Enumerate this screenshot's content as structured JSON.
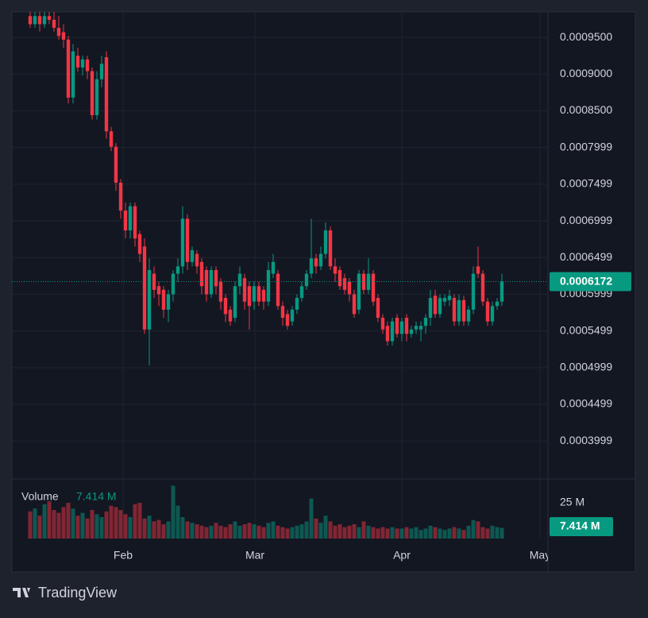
{
  "chart_data": {
    "type": "candlestick",
    "open": [
      0.000979,
      0.000968,
      0.000979,
      0.000968,
      0.000979,
      0.000974,
      0.000963,
      0.000957,
      0.000947,
      0.000868,
      0.000925,
      0.000909,
      0.00092,
      0.000904,
      0.000844,
      0.000893,
      0.000923,
      0.000822,
      0.000801,
      0.000752,
      0.000714,
      0.000687,
      0.00072,
      0.000682,
      0.000665,
      0.000552,
      0.000628,
      0.000611,
      0.000606,
      0.000579,
      0.0006,
      0.000628,
      0.000638,
      0.000703,
      0.000644,
      0.000655,
      0.000644,
      0.000633,
      0.0006,
      0.000633,
      0.000617,
      0.000595,
      0.000579,
      0.000568,
      0.000611,
      0.000622,
      0.000611,
      0.00059,
      0.000611,
      0.000606,
      0.00059,
      0.000628,
      0.000628,
      0.000584,
      0.000573,
      0.000563,
      0.000579,
      0.000595,
      0.000611,
      0.000628,
      0.000649,
      0.000638,
      0.000655,
      0.000687,
      0.000638,
      0.000633,
      0.000622,
      0.000617,
      0.0006,
      0.000579,
      0.000628,
      0.000606,
      0.000628,
      0.000595,
      0.000568,
      0.000557,
      0.000536,
      0.000568,
      0.000546,
      0.000568,
      0.000546,
      0.000552,
      0.000552,
      0.000557,
      0.000568,
      0.000598,
      0.000573,
      0.00059,
      0.000592,
      0.000595,
      0.000563,
      0.000592,
      0.000563,
      0.000579,
      0.000638,
      0.000628,
      0.00059,
      0.000563,
      0.000584,
      0.00059
    ],
    "high": [
      0.000985,
      0.000985,
      0.000985,
      0.000985,
      0.000985,
      0.000985,
      0.000979,
      0.000968,
      0.000952,
      0.000941,
      0.000936,
      0.000925,
      0.000925,
      0.000909,
      0.000904,
      0.000925,
      0.000931,
      0.000828,
      0.000806,
      0.000757,
      0.000725,
      0.000725,
      0.000725,
      0.000687,
      0.000676,
      0.000649,
      0.000638,
      0.000617,
      0.000611,
      0.000606,
      0.000633,
      0.000649,
      0.00072,
      0.000709,
      0.000665,
      0.00066,
      0.000649,
      0.000638,
      0.000638,
      0.000638,
      0.000622,
      0.0006,
      0.000584,
      0.000617,
      0.000638,
      0.000628,
      0.000617,
      0.000617,
      0.000617,
      0.000611,
      0.000644,
      0.000655,
      0.000633,
      0.00059,
      0.000579,
      0.000584,
      0.0006,
      0.000617,
      0.000633,
      0.000703,
      0.000655,
      0.000665,
      0.000698,
      0.000692,
      0.000649,
      0.000638,
      0.000628,
      0.000622,
      0.000606,
      0.000633,
      0.000633,
      0.000649,
      0.000633,
      0.0006,
      0.000573,
      0.000563,
      0.000568,
      0.000573,
      0.000568,
      0.000573,
      0.000557,
      0.000563,
      0.000563,
      0.000573,
      0.000606,
      0.000606,
      0.0006,
      0.0006,
      0.000606,
      0.0006,
      0.0006,
      0.000598,
      0.000584,
      0.000638,
      0.000665,
      0.000633,
      0.000595,
      0.00059,
      0.000595,
      0.000628
    ],
    "low": [
      0.000963,
      0.000963,
      0.000958,
      0.000963,
      0.000968,
      0.000958,
      0.000947,
      0.000936,
      0.00086,
      0.00086,
      0.000903,
      0.000898,
      0.000893,
      0.000838,
      0.000838,
      0.000882,
      0.000812,
      0.000795,
      0.000741,
      0.000703,
      0.000676,
      0.000676,
      0.000665,
      0.000644,
      0.000546,
      0.000503,
      0.000595,
      0.000584,
      0.000568,
      0.000562,
      0.00059,
      0.000617,
      0.000628,
      0.000633,
      0.000638,
      0.000628,
      0.0006,
      0.00059,
      0.000595,
      0.0006,
      0.000579,
      0.000562,
      0.000557,
      0.000562,
      0.0006,
      0.000579,
      0.000552,
      0.000579,
      0.000584,
      0.000579,
      0.000584,
      0.000622,
      0.000579,
      0.000557,
      0.000552,
      0.000557,
      0.000573,
      0.00059,
      0.000606,
      0.000622,
      0.000628,
      0.000633,
      0.000649,
      0.000633,
      0.000617,
      0.000606,
      0.0006,
      0.00059,
      0.000568,
      0.000573,
      0.0006,
      0.0006,
      0.000584,
      0.000562,
      0.000546,
      0.00053,
      0.00053,
      0.000541,
      0.000536,
      0.000536,
      0.000541,
      0.000546,
      0.000536,
      0.000546,
      0.000557,
      0.000568,
      0.000568,
      0.000584,
      0.000584,
      0.000557,
      0.000557,
      0.000557,
      0.000557,
      0.000573,
      0.000622,
      0.000584,
      0.000557,
      0.000557,
      0.000579,
      0.000584
    ],
    "close": [
      0.000968,
      0.000979,
      0.000968,
      0.000979,
      0.000974,
      0.000963,
      0.000952,
      0.000947,
      0.000868,
      0.000931,
      0.000909,
      0.00092,
      0.000904,
      0.000844,
      0.000893,
      0.000914,
      0.000822,
      0.000801,
      0.000752,
      0.000714,
      0.000687,
      0.00072,
      0.000676,
      0.000655,
      0.000552,
      0.000633,
      0.000606,
      0.0006,
      0.000579,
      0.0006,
      0.000628,
      0.000638,
      0.000703,
      0.000644,
      0.00066,
      0.000638,
      0.000611,
      0.0006,
      0.000633,
      0.000611,
      0.00059,
      0.000573,
      0.000563,
      0.000611,
      0.000628,
      0.00059,
      0.000584,
      0.000611,
      0.00059,
      0.00059,
      0.000633,
      0.000644,
      0.000584,
      0.000568,
      0.000557,
      0.000579,
      0.000595,
      0.000611,
      0.000628,
      0.000649,
      0.000638,
      0.000655,
      0.000687,
      0.000638,
      0.000628,
      0.000611,
      0.000606,
      0.0006,
      0.000573,
      0.000628,
      0.000606,
      0.000628,
      0.00059,
      0.000568,
      0.000552,
      0.000536,
      0.000563,
      0.000546,
      0.000563,
      0.000546,
      0.000552,
      0.000557,
      0.000557,
      0.000568,
      0.000595,
      0.000573,
      0.000595,
      0.000595,
      0.000598,
      0.000563,
      0.000592,
      0.000563,
      0.000579,
      0.000628,
      0.000628,
      0.00059,
      0.000563,
      0.000584,
      0.00059,
      0.0006172
    ],
    "volume": {
      "name": "Volume",
      "current_label": "7.414 M",
      "values": [
        19,
        21,
        16,
        24,
        26,
        20,
        18,
        22,
        25,
        21,
        16,
        18,
        14,
        20,
        17,
        15,
        19,
        23,
        22,
        20,
        17,
        15,
        24,
        25,
        14,
        16,
        12,
        13,
        10,
        12,
        37,
        23,
        15,
        12,
        11,
        10,
        9,
        8,
        9,
        11,
        9,
        8,
        10,
        12,
        9,
        10,
        11,
        10,
        9,
        8,
        11,
        12,
        9,
        8,
        7,
        8,
        9,
        10,
        12,
        28,
        14,
        11,
        16,
        12,
        9,
        10,
        8,
        9,
        10,
        8,
        12,
        9,
        8,
        7,
        8,
        7,
        8,
        7,
        7,
        8,
        7,
        8,
        6,
        7,
        9,
        8,
        7,
        6,
        7,
        8,
        7,
        6,
        9,
        13,
        12,
        8,
        7,
        9,
        8,
        7.414
      ],
      "lim": [
        0,
        40.56
      ],
      "ticks": [
        {
          "value": 25,
          "label": "25 M"
        }
      ]
    },
    "up_color": "#089981",
    "down_color": "#f23645",
    "ylim": [
      0.0003483,
      0.0009847
    ],
    "yticks": [
      {
        "value": 0.00095,
        "label": "0.0009500"
      },
      {
        "value": 0.0009,
        "label": "0.0009000"
      },
      {
        "value": 0.00085,
        "label": "0.0008500"
      },
      {
        "value": 0.0008,
        "label": "0.0007999"
      },
      {
        "value": 0.00075,
        "label": "0.0007499"
      },
      {
        "value": 0.0007,
        "label": "0.0006999"
      },
      {
        "value": 0.00065,
        "label": "0.0006499"
      },
      {
        "value": 0.0006,
        "label": "0.0005999"
      },
      {
        "value": 0.00055,
        "label": "0.0005499"
      },
      {
        "value": 0.0005,
        "label": "0.0004999"
      },
      {
        "value": 0.00045,
        "label": "0.0004499"
      },
      {
        "value": 0.0004,
        "label": "0.0003999"
      }
    ],
    "xlim": [
      -3.833,
      108.667
    ],
    "xticks": [
      {
        "value": 19.5,
        "label": "Feb"
      },
      {
        "value": 47.17,
        "label": "Mar"
      },
      {
        "value": 78,
        "label": "Apr"
      },
      {
        "value": 107,
        "label": "May"
      }
    ],
    "grid": true,
    "brand": "TradingView"
  }
}
